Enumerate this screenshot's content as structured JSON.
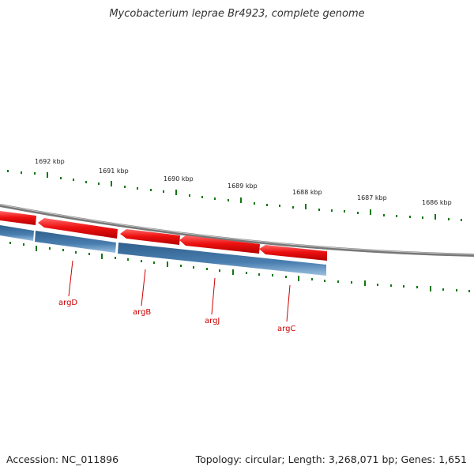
{
  "title": "Mycobacterium leprae Br4923, complete genome",
  "footer": {
    "accession": "Accession: NC_011896",
    "summary": "Topology: circular; Length: 3,268,071 bp; Genes: 1,651"
  },
  "scale_labels": [
    "1692 kbp",
    "1691 kbp",
    "1690 kbp",
    "1689 kbp",
    "1688 kbp",
    "1687 kbp",
    "1686 kbp"
  ],
  "genes": [
    {
      "name": "argD"
    },
    {
      "name": "argB"
    },
    {
      "name": "argJ"
    },
    {
      "name": "argC"
    }
  ],
  "colors": {
    "forward_strand": "#ee1111",
    "reverse_strand": "#4a7fb0",
    "backbone": "#888888",
    "ticks": "#117711",
    "gene_label": "#cc0000"
  }
}
